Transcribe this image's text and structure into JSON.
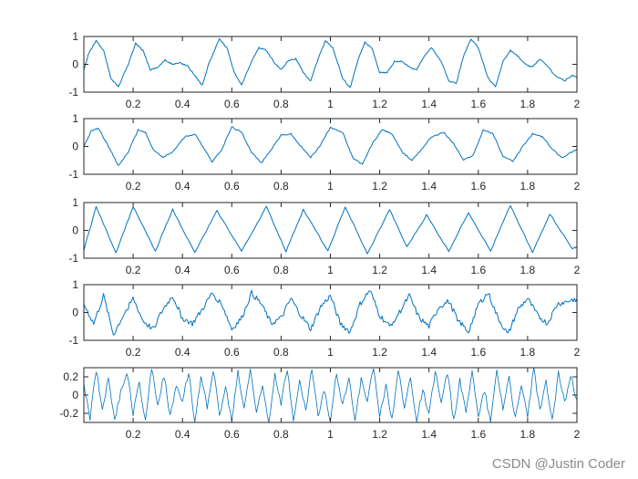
{
  "chart_data": [
    {
      "type": "line",
      "title": "",
      "xlabel": "",
      "ylabel": "",
      "xlim": [
        0,
        2
      ],
      "ylim": [
        -1,
        1
      ],
      "xticks": [
        0.2,
        0.4,
        0.6,
        0.8,
        1,
        1.2,
        1.4,
        1.6,
        1.8,
        2
      ],
      "yticks": [
        -1,
        0,
        1
      ],
      "color": "#0072BD",
      "series": [
        {
          "x": [
            0,
            0.02,
            0.05,
            0.08,
            0.11,
            0.14,
            0.18,
            0.21,
            0.24,
            0.27,
            0.3,
            0.33,
            0.36,
            0.39,
            0.42,
            0.45,
            0.48,
            0.51,
            0.55,
            0.58,
            0.61,
            0.64,
            0.68,
            0.71,
            0.74,
            0.77,
            0.8,
            0.83,
            0.86,
            0.89,
            0.92,
            0.95,
            0.98,
            1.01,
            1.05,
            1.08,
            1.11,
            1.14,
            1.17,
            1.2,
            1.23,
            1.26,
            1.29,
            1.32,
            1.35,
            1.38,
            1.41,
            1.45,
            1.48,
            1.51,
            1.54,
            1.57,
            1.6,
            1.64,
            1.67,
            1.7,
            1.73,
            1.76,
            1.79,
            1.82,
            1.85,
            1.88,
            1.91,
            1.95,
            1.98,
            2
          ],
          "y": [
            -0.2,
            0.4,
            0.85,
            0.5,
            -0.5,
            -0.8,
            0.0,
            0.75,
            0.5,
            -0.2,
            -0.1,
            0.15,
            0.0,
            0.05,
            -0.05,
            -0.4,
            -0.75,
            0.1,
            0.9,
            0.6,
            -0.3,
            -0.75,
            0.1,
            0.6,
            0.5,
            0.1,
            -0.2,
            0.15,
            0.2,
            -0.3,
            -0.6,
            0.2,
            0.85,
            0.6,
            -0.5,
            -0.85,
            0.1,
            0.8,
            0.55,
            -0.3,
            -0.3,
            0.1,
            0.1,
            -0.1,
            -0.2,
            0.3,
            0.6,
            0.1,
            -0.6,
            -0.7,
            0.3,
            0.9,
            0.6,
            -0.5,
            -0.8,
            0.1,
            0.5,
            0.3,
            0.0,
            -0.1,
            0.2,
            -0.05,
            -0.4,
            -0.6,
            -0.4,
            -0.45
          ]
        }
      ]
    },
    {
      "type": "line",
      "title": "",
      "xlabel": "",
      "ylabel": "",
      "xlim": [
        0,
        2
      ],
      "ylim": [
        -1,
        1
      ],
      "xticks": [
        0.2,
        0.4,
        0.6,
        0.8,
        1,
        1.2,
        1.4,
        1.6,
        1.8,
        2
      ],
      "yticks": [
        -1,
        0,
        1
      ],
      "color": "#0072BD",
      "series": [
        {
          "x": [
            0,
            0.03,
            0.06,
            0.1,
            0.14,
            0.18,
            0.22,
            0.25,
            0.28,
            0.32,
            0.36,
            0.41,
            0.45,
            0.49,
            0.52,
            0.56,
            0.6,
            0.64,
            0.68,
            0.72,
            0.76,
            0.8,
            0.84,
            0.88,
            0.92,
            0.96,
            1.0,
            1.05,
            1.09,
            1.13,
            1.17,
            1.21,
            1.25,
            1.29,
            1.33,
            1.37,
            1.41,
            1.46,
            1.5,
            1.54,
            1.58,
            1.62,
            1.66,
            1.7,
            1.74,
            1.78,
            1.82,
            1.86,
            1.9,
            1.94,
            1.98,
            2
          ],
          "y": [
            0.0,
            0.55,
            0.65,
            0.0,
            -0.7,
            -0.2,
            0.6,
            0.5,
            -0.1,
            -0.4,
            -0.2,
            0.35,
            0.45,
            -0.1,
            -0.55,
            -0.1,
            0.7,
            0.5,
            -0.2,
            -0.6,
            -0.1,
            0.4,
            0.45,
            0.0,
            -0.4,
            0.05,
            0.7,
            0.5,
            -0.4,
            -0.65,
            0.1,
            0.6,
            0.45,
            -0.2,
            -0.5,
            -0.1,
            0.35,
            0.5,
            0.1,
            -0.5,
            -0.3,
            0.6,
            0.45,
            -0.35,
            -0.55,
            0.0,
            0.45,
            0.35,
            -0.1,
            -0.4,
            -0.2,
            -0.1
          ]
        }
      ]
    },
    {
      "type": "line",
      "title": "",
      "xlabel": "",
      "ylabel": "",
      "xlim": [
        0,
        2
      ],
      "ylim": [
        -1,
        1
      ],
      "xticks": [
        0.2,
        0.4,
        0.6,
        0.8,
        1,
        1.2,
        1.4,
        1.6,
        1.8,
        2
      ],
      "yticks": [
        -1,
        0,
        1
      ],
      "color": "#0072BD",
      "series": [
        {
          "x": [
            0,
            0.05,
            0.13,
            0.2,
            0.29,
            0.36,
            0.45,
            0.54,
            0.64,
            0.74,
            0.82,
            0.89,
            0.99,
            1.06,
            1.15,
            1.24,
            1.31,
            1.39,
            1.48,
            1.56,
            1.65,
            1.73,
            1.82,
            1.89,
            1.98,
            2
          ],
          "y": [
            -0.7,
            0.85,
            -0.8,
            0.85,
            -0.75,
            0.75,
            -0.8,
            0.7,
            -0.75,
            0.85,
            -0.75,
            0.75,
            -0.75,
            0.85,
            -0.85,
            0.75,
            -0.6,
            0.55,
            -0.75,
            0.65,
            -0.75,
            0.9,
            -0.8,
            0.6,
            -0.65,
            -0.6
          ]
        }
      ]
    },
    {
      "type": "line",
      "title": "",
      "xlabel": "",
      "ylabel": "",
      "xlim": [
        0,
        2
      ],
      "ylim": [
        -1,
        1
      ],
      "xticks": [
        0.2,
        0.4,
        0.6,
        0.8,
        1,
        1.2,
        1.4,
        1.6,
        1.8,
        2
      ],
      "yticks": [
        -1,
        0,
        1
      ],
      "color": "#0072BD",
      "series": [
        {
          "x": [
            0,
            0.04,
            0.08,
            0.12,
            0.16,
            0.2,
            0.24,
            0.28,
            0.32,
            0.36,
            0.4,
            0.44,
            0.48,
            0.52,
            0.56,
            0.6,
            0.64,
            0.68,
            0.72,
            0.76,
            0.8,
            0.84,
            0.88,
            0.92,
            0.96,
            1.0,
            1.04,
            1.08,
            1.12,
            1.16,
            1.2,
            1.24,
            1.28,
            1.32,
            1.36,
            1.4,
            1.44,
            1.48,
            1.52,
            1.56,
            1.6,
            1.64,
            1.68,
            1.72,
            1.76,
            1.8,
            1.84,
            1.88,
            1.92,
            1.96,
            2
          ],
          "y": [
            0.3,
            -0.4,
            0.6,
            -0.8,
            -0.1,
            0.5,
            -0.3,
            -0.6,
            0.1,
            0.6,
            -0.2,
            -0.4,
            0.1,
            0.7,
            0.3,
            -0.6,
            -0.2,
            0.7,
            0.3,
            -0.4,
            -0.2,
            0.5,
            -0.1,
            -0.6,
            0.2,
            0.6,
            -0.4,
            -0.7,
            0.3,
            0.8,
            -0.1,
            -0.5,
            0.0,
            0.6,
            -0.2,
            -0.5,
            0.2,
            0.4,
            -0.3,
            -0.7,
            0.3,
            0.7,
            -0.2,
            -0.8,
            0.1,
            0.5,
            -0.1,
            -0.4,
            0.3,
            0.4,
            0.5
          ]
        }
      ]
    },
    {
      "type": "line",
      "title": "",
      "xlabel": "",
      "ylabel": "",
      "xlim": [
        0,
        2
      ],
      "ylim": [
        -0.3,
        0.3
      ],
      "xticks": [
        0.2,
        0.4,
        0.6,
        0.8,
        1,
        1.2,
        1.4,
        1.6,
        1.8,
        2
      ],
      "yticks": [
        -0.2,
        0,
        0.2
      ],
      "ytick_labels": [
        "-0.2",
        "0",
        "0.2"
      ],
      "color": "#0072BD",
      "series": [
        {
          "x": [
            0,
            0.025,
            0.05,
            0.075,
            0.1,
            0.125,
            0.15,
            0.175,
            0.2,
            0.225,
            0.25,
            0.275,
            0.3,
            0.325,
            0.35,
            0.375,
            0.4,
            0.425,
            0.45,
            0.475,
            0.5,
            0.525,
            0.55,
            0.575,
            0.6,
            0.625,
            0.65,
            0.675,
            0.7,
            0.725,
            0.75,
            0.775,
            0.8,
            0.825,
            0.85,
            0.875,
            0.9,
            0.925,
            0.95,
            0.975,
            1.0,
            1.025,
            1.05,
            1.075,
            1.1,
            1.125,
            1.15,
            1.175,
            1.2,
            1.225,
            1.25,
            1.275,
            1.3,
            1.325,
            1.35,
            1.375,
            1.4,
            1.425,
            1.45,
            1.475,
            1.5,
            1.525,
            1.55,
            1.575,
            1.6,
            1.625,
            1.65,
            1.675,
            1.7,
            1.725,
            1.75,
            1.775,
            1.8,
            1.825,
            1.85,
            1.875,
            1.9,
            1.925,
            1.95,
            1.975,
            2
          ],
          "y": [
            0.1,
            -0.25,
            0.28,
            -0.15,
            0.2,
            -0.3,
            0.05,
            0.25,
            -0.2,
            0.15,
            -0.28,
            0.3,
            -0.1,
            0.22,
            -0.25,
            0.12,
            -0.05,
            0.27,
            -0.3,
            0.18,
            -0.12,
            0.29,
            -0.22,
            0.08,
            -0.28,
            0.25,
            -0.15,
            0.3,
            -0.2,
            0.1,
            -0.3,
            0.24,
            -0.08,
            0.28,
            -0.26,
            0.14,
            -0.18,
            0.3,
            -0.24,
            0.05,
            -0.29,
            0.26,
            -0.12,
            0.22,
            -0.3,
            0.17,
            -0.06,
            0.29,
            -0.21,
            0.11,
            -0.27,
            0.3,
            -0.16,
            0.2,
            -0.3,
            0.08,
            -0.23,
            0.27,
            -0.1,
            0.25,
            -0.29,
            0.15,
            -0.2,
            0.3,
            -0.25,
            0.06,
            -0.3,
            0.28,
            -0.14,
            0.21,
            -0.27,
            0.1,
            -0.22,
            0.3,
            -0.18,
            0.13,
            -0.29,
            0.24,
            -0.08,
            0.2,
            -0.05
          ]
        }
      ]
    }
  ],
  "watermark": "CSDN @Justin Coder"
}
